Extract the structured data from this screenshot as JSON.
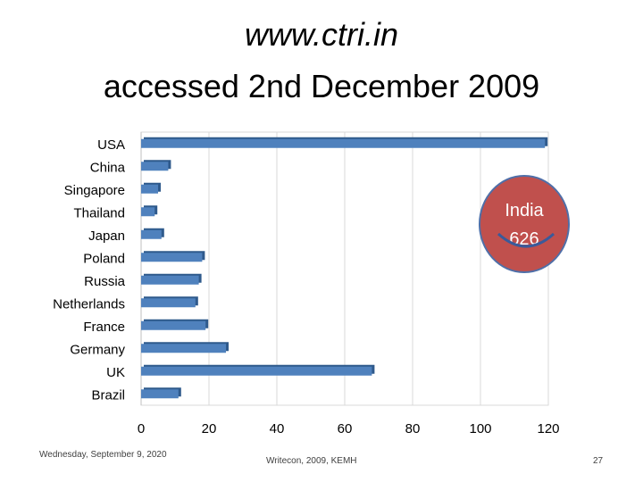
{
  "slide": {
    "title_line1": "www.ctri.in",
    "title_line2": "accessed 2nd December 2009",
    "footer_date": "Wednesday, September 9, 2020",
    "footer_center": "Writecon, 2009, KEMH",
    "page_number": "27"
  },
  "callout": {
    "label": "India",
    "value": "626",
    "fill_color": "#c0504d",
    "border_color": "#4f6fa8"
  },
  "chart_data": {
    "type": "bar",
    "orientation": "horizontal",
    "categories": [
      "USA",
      "China",
      "Singapore",
      "Thailand",
      "Japan",
      "Poland",
      "Russia",
      "Netherlands",
      "France",
      "Germany",
      "UK",
      "Brazil"
    ],
    "values": [
      119,
      8,
      5,
      4,
      6,
      18,
      17,
      16,
      19,
      25,
      68,
      11
    ],
    "xlim": [
      0,
      120
    ],
    "xticks": [
      0,
      20,
      40,
      60,
      80,
      100,
      120
    ],
    "grid": true,
    "bar_color": "#4f81bd"
  }
}
